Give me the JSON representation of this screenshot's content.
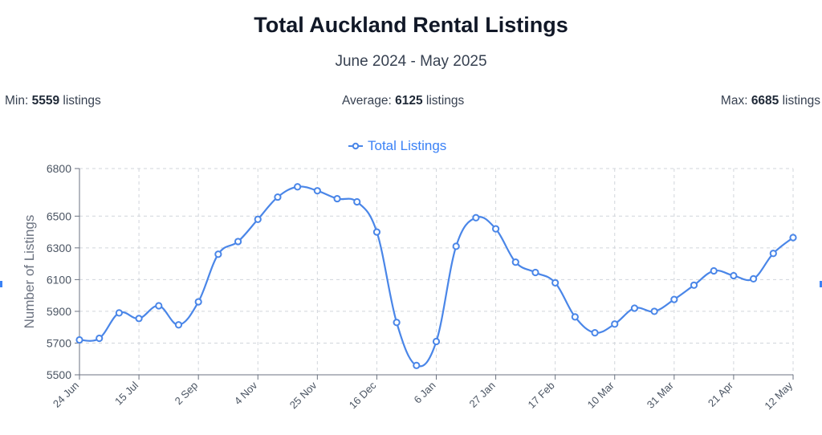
{
  "header": {
    "title": "Total Auckland Rental Listings",
    "subtitle": "June 2024 - May 2025"
  },
  "stats": {
    "min_label": "Min:",
    "min_value": "5559",
    "avg_label": "Average:",
    "avg_value": "6125",
    "max_label": "Max:",
    "max_value": "6685",
    "unit": "listings"
  },
  "colors": {
    "series": "#4a86e8",
    "grid": "#d1d5db",
    "axis": "#6b7280"
  },
  "chart_data": {
    "type": "line",
    "title": "Total Auckland Rental Listings",
    "subtitle": "June 2024 - May 2025",
    "ylabel": "Number of Listings",
    "xlabel": "",
    "ylim": [
      5500,
      6800
    ],
    "yticks": [
      5500,
      5700,
      5900,
      6100,
      6300,
      6500,
      6800
    ],
    "xtick_labels": [
      "24 Jun",
      "15 Jul",
      "2 Sep",
      "4 Nov",
      "25 Nov",
      "16 Dec",
      "6 Jan",
      "27 Jan",
      "17 Feb",
      "10 Mar",
      "31 Mar",
      "21 Apr",
      "12 May"
    ],
    "legend": "top-center",
    "grid": true,
    "series": [
      {
        "name": "Total Listings",
        "values": [
          5720,
          5730,
          5890,
          5855,
          5935,
          5815,
          5960,
          6260,
          6340,
          6480,
          6620,
          6685,
          6660,
          6610,
          6590,
          6400,
          5830,
          5559,
          5710,
          6310,
          6490,
          6420,
          6210,
          6145,
          6080,
          5865,
          5765,
          5820,
          5920,
          5900,
          5975,
          6065,
          6155,
          6125,
          6105,
          6265,
          6365
        ]
      }
    ]
  }
}
